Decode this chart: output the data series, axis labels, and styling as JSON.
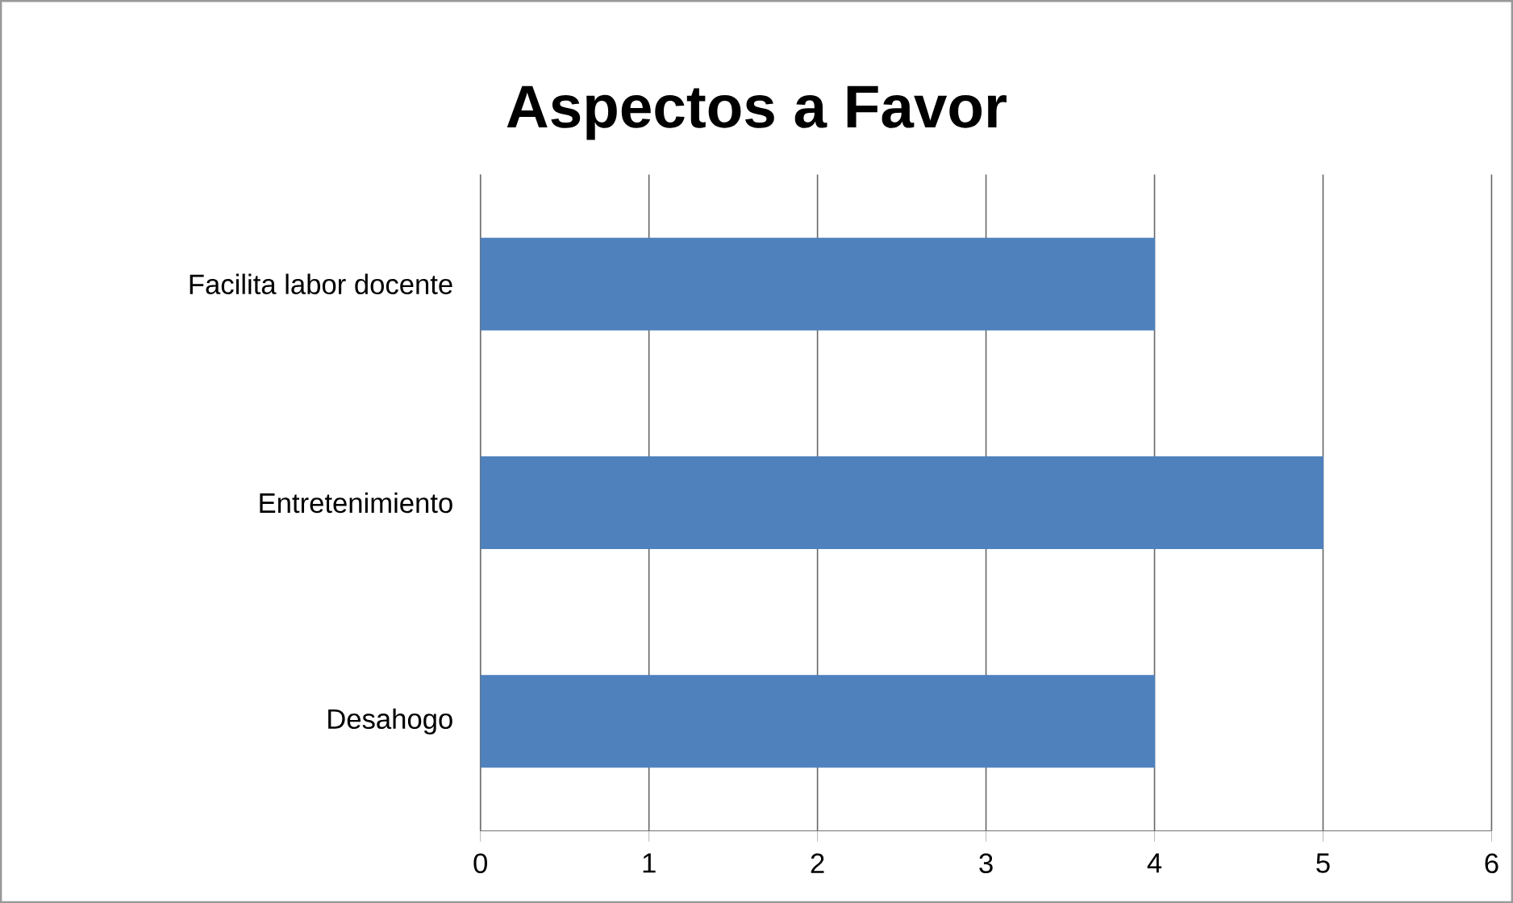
{
  "chart_data": {
    "type": "bar",
    "orientation": "horizontal",
    "title": "Aspectos a Favor",
    "categories": [
      "Facilita labor docente",
      "Entretenimiento",
      "Desahogo"
    ],
    "values": [
      4,
      5,
      4
    ],
    "color": "#4f81bd",
    "xlim": [
      0,
      6
    ],
    "xticks": [
      0,
      1,
      2,
      3,
      4,
      5,
      6
    ],
    "grid": "x"
  }
}
